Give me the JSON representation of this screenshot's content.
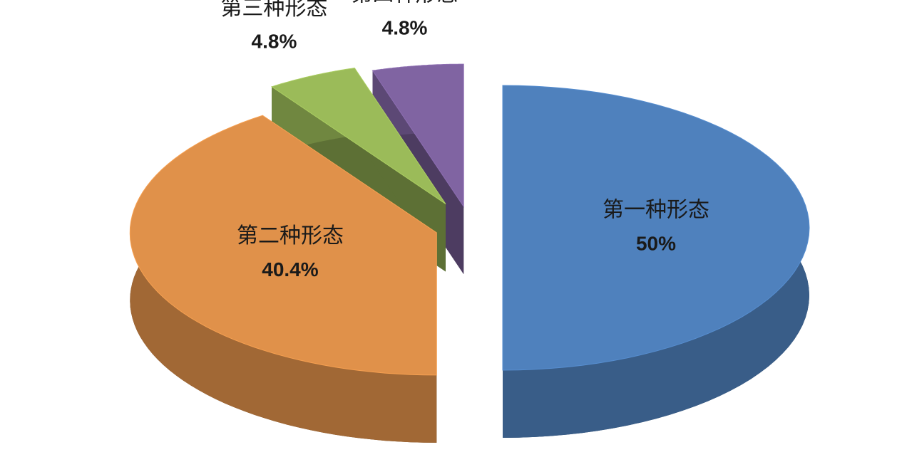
{
  "chart_data": {
    "type": "pie",
    "categories": [
      "第一种形态",
      "第二种形态",
      "第三种形态",
      "第四种形态"
    ],
    "values": [
      50,
      40.4,
      4.8,
      4.8
    ],
    "value_labels": [
      "50%",
      "40.4%",
      "4.8%",
      "4.8%"
    ],
    "colors": [
      "#4f81bd",
      "#e0914a",
      "#9bbb59",
      "#8064a2"
    ]
  }
}
